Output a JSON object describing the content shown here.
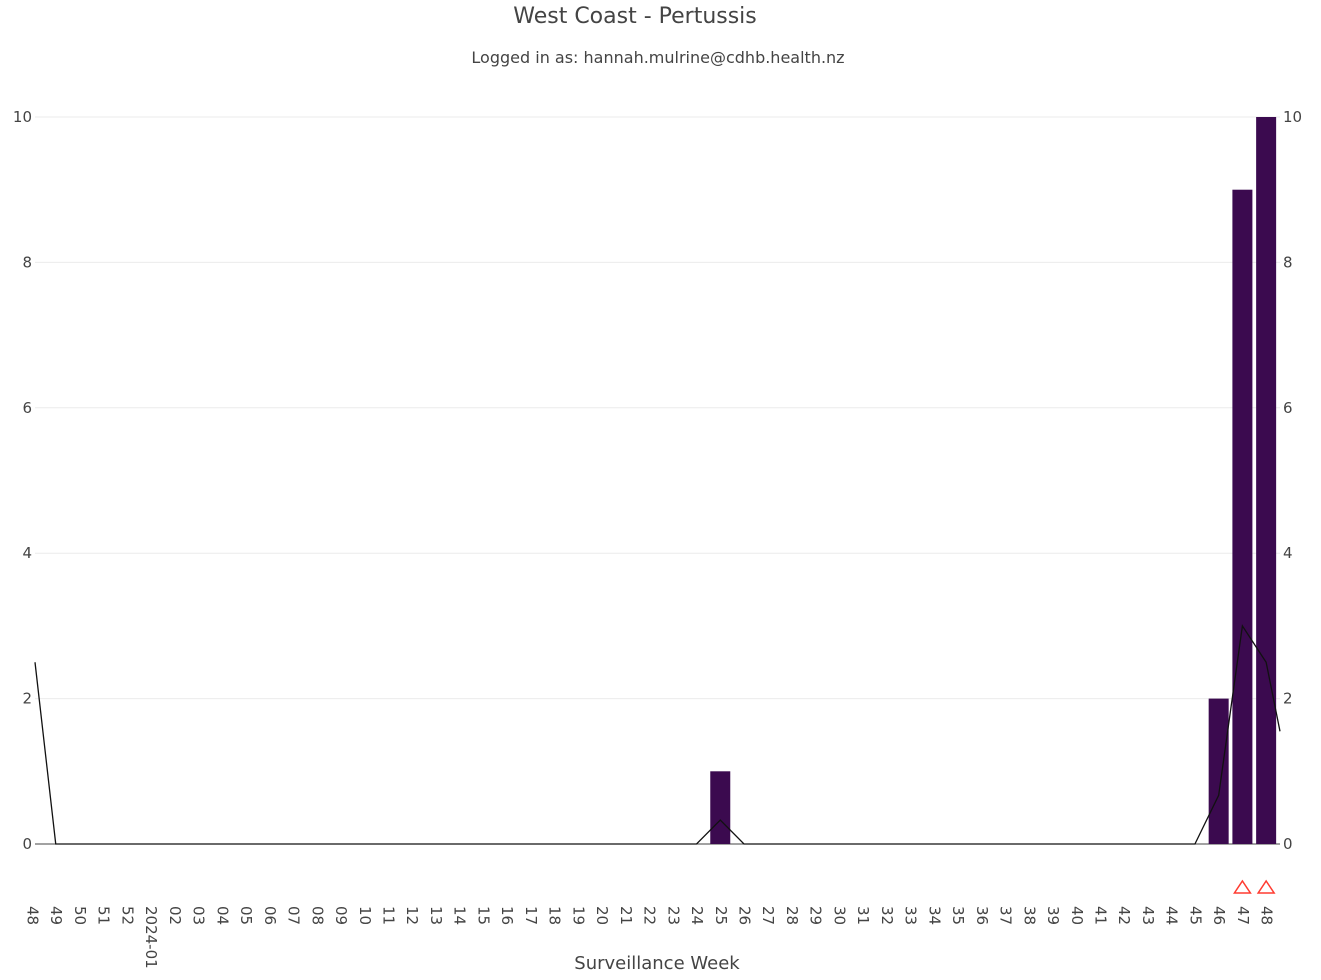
{
  "page": {
    "title": "West Coast - Pertussis",
    "subtitle": "Logged in as: hannah.mulrine@cdhb.health.nz"
  },
  "chart_data": {
    "type": "bar",
    "title": "West Coast - Pertussis",
    "subtitle": "Logged in as: hannah.mulrine@cdhb.health.nz",
    "xlabel": "Surveillance Week",
    "ylabel": "",
    "ylim": [
      0,
      10
    ],
    "y_ticks": [
      0,
      2,
      4,
      6,
      8,
      10
    ],
    "y2_ticks": [
      0,
      2,
      4,
      6,
      8,
      10
    ],
    "grid": true,
    "categories": [
      "48",
      "49",
      "50",
      "51",
      "52",
      "2024-01",
      "02",
      "03",
      "04",
      "05",
      "06",
      "07",
      "08",
      "09",
      "10",
      "11",
      "12",
      "13",
      "14",
      "15",
      "16",
      "17",
      "18",
      "19",
      "20",
      "21",
      "22",
      "23",
      "24",
      "25",
      "26",
      "27",
      "28",
      "29",
      "30",
      "31",
      "32",
      "33",
      "34",
      "35",
      "36",
      "37",
      "38",
      "39",
      "40",
      "41",
      "42",
      "43",
      "44",
      "45",
      "46",
      "47",
      "48"
    ],
    "series": [
      {
        "type": "bar",
        "values": [
          0,
          0,
          0,
          0,
          0,
          0,
          0,
          0,
          0,
          0,
          0,
          0,
          0,
          0,
          0,
          0,
          0,
          0,
          0,
          0,
          0,
          0,
          0,
          0,
          0,
          0,
          0,
          0,
          0,
          1,
          0,
          0,
          0,
          0,
          0,
          0,
          0,
          0,
          0,
          0,
          0,
          0,
          0,
          0,
          0,
          0,
          0,
          0,
          0,
          0,
          2,
          9,
          10
        ],
        "color": "#3b0a4f"
      },
      {
        "type": "line",
        "values": [
          2.5,
          0,
          0,
          0,
          0,
          0,
          0,
          0,
          0,
          0,
          0,
          0,
          0,
          0,
          0,
          0,
          0,
          0,
          0,
          0,
          0,
          0,
          0,
          0,
          0,
          0,
          0,
          0,
          0,
          0.33,
          0,
          0,
          0,
          0,
          0,
          0,
          0,
          0,
          0,
          0,
          0,
          0,
          0,
          0,
          0,
          0,
          0,
          0,
          0,
          0,
          0.67,
          3,
          2.5
        ],
        "color": "#111111",
        "x_end_value": 1.55
      }
    ],
    "markers": {
      "symbol": "triangle-up",
      "color": "#ff3b30",
      "categories_index": [
        51,
        52
      ]
    }
  }
}
